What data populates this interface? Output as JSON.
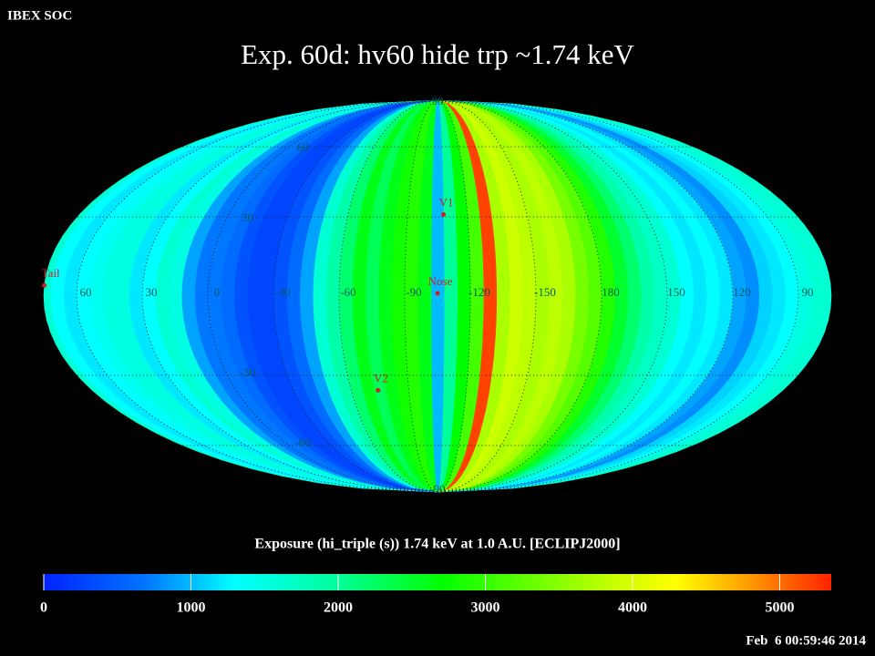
{
  "header": "IBEX SOC",
  "footer": "Feb  6 00:59:46 2014",
  "chart_data": {
    "type": "skymap",
    "title": "Exp.   60d: hv60 hide trp ~1.74 keV",
    "colorbar_label": "Exposure (hi_triple (s))  1.74 keV at 1.0 A.U. [ECLIPJ2000]",
    "center_lon": 255,
    "lon_edges": [
      0,
      6,
      12,
      18,
      24,
      30,
      36,
      42,
      48,
      54,
      60,
      66,
      72,
      78,
      84,
      90,
      96,
      102,
      108,
      114,
      120,
      126,
      132,
      138,
      144,
      150,
      156,
      162,
      168,
      174,
      180,
      186,
      192,
      198,
      204,
      210,
      216,
      222,
      228,
      234,
      240,
      246,
      252,
      258,
      264,
      270,
      276,
      282,
      288,
      294,
      300,
      306,
      312,
      318,
      324,
      330,
      336,
      342,
      348,
      354,
      360
    ],
    "values": [
      700,
      900,
      1500,
      1600,
      1300,
      1200,
      1500,
      1500,
      1400,
      1300,
      1200,
      1300,
      1600,
      1600,
      1500,
      1300,
      1200,
      1100,
      800,
      900,
      1200,
      1300,
      1200,
      1300,
      1600,
      1700,
      1900,
      2200,
      2500,
      2900,
      3200,
      3400,
      3700,
      3800,
      3700,
      3800,
      3900,
      3700,
      5200,
      3100,
      2700,
      2000,
      1000,
      2600,
      2900,
      2800,
      2600,
      2300,
      2600,
      2200,
      1900,
      1600,
      900,
      600,
      400,
      300,
      300,
      400,
      600,
      700
    ],
    "lon_ticks": [
      60,
      30,
      0,
      -30,
      -60,
      -90,
      -120,
      -150,
      180,
      150,
      120,
      90
    ],
    "lat_ticks": [
      90,
      60,
      30,
      -30,
      -60,
      -90
    ],
    "points": [
      {
        "name": "V1",
        "lon": 252,
        "lat": 31
      },
      {
        "name": "V2",
        "lon": 286,
        "lat": -36
      },
      {
        "name": "Nose",
        "lon": 255,
        "lat": 1
      },
      {
        "name": "Tail",
        "lon": 75,
        "lat": 4
      }
    ],
    "point_color": "#cc2222",
    "label_color": "#005a5a",
    "zlim": [
      0,
      5350
    ],
    "zticks": [
      0,
      1000,
      2000,
      3000,
      4000,
      5000
    ],
    "colormap": {
      "stops": [
        0,
        700,
        1300,
        2000,
        2700,
        3300,
        3900,
        4300,
        4800,
        5350
      ],
      "colors": [
        "#0022ff",
        "#0077ff",
        "#00ffff",
        "#00ff99",
        "#00ff00",
        "#66ff00",
        "#ccff00",
        "#ffff00",
        "#ff9900",
        "#ff2200"
      ]
    },
    "grid": true
  }
}
